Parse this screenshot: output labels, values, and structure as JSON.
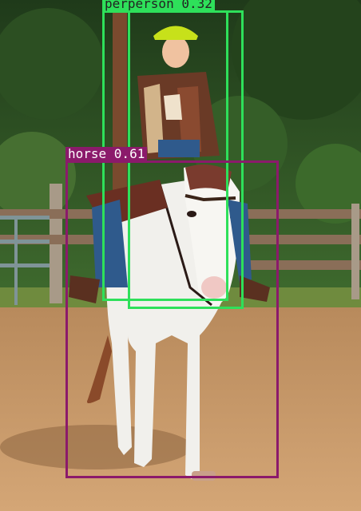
{
  "image": {
    "description_free_render": true
  },
  "detections": [
    {
      "label": "perperson 0.32",
      "class": "person",
      "color": "#2ee05a",
      "text_color": "#222222"
    },
    {
      "label": "",
      "class": "person",
      "color": "#2ee05a",
      "text_color": "#222222"
    },
    {
      "label": "horse 0.61",
      "class": "horse",
      "color": "#8b1a6b",
      "text_color": "#ffffff"
    }
  ]
}
